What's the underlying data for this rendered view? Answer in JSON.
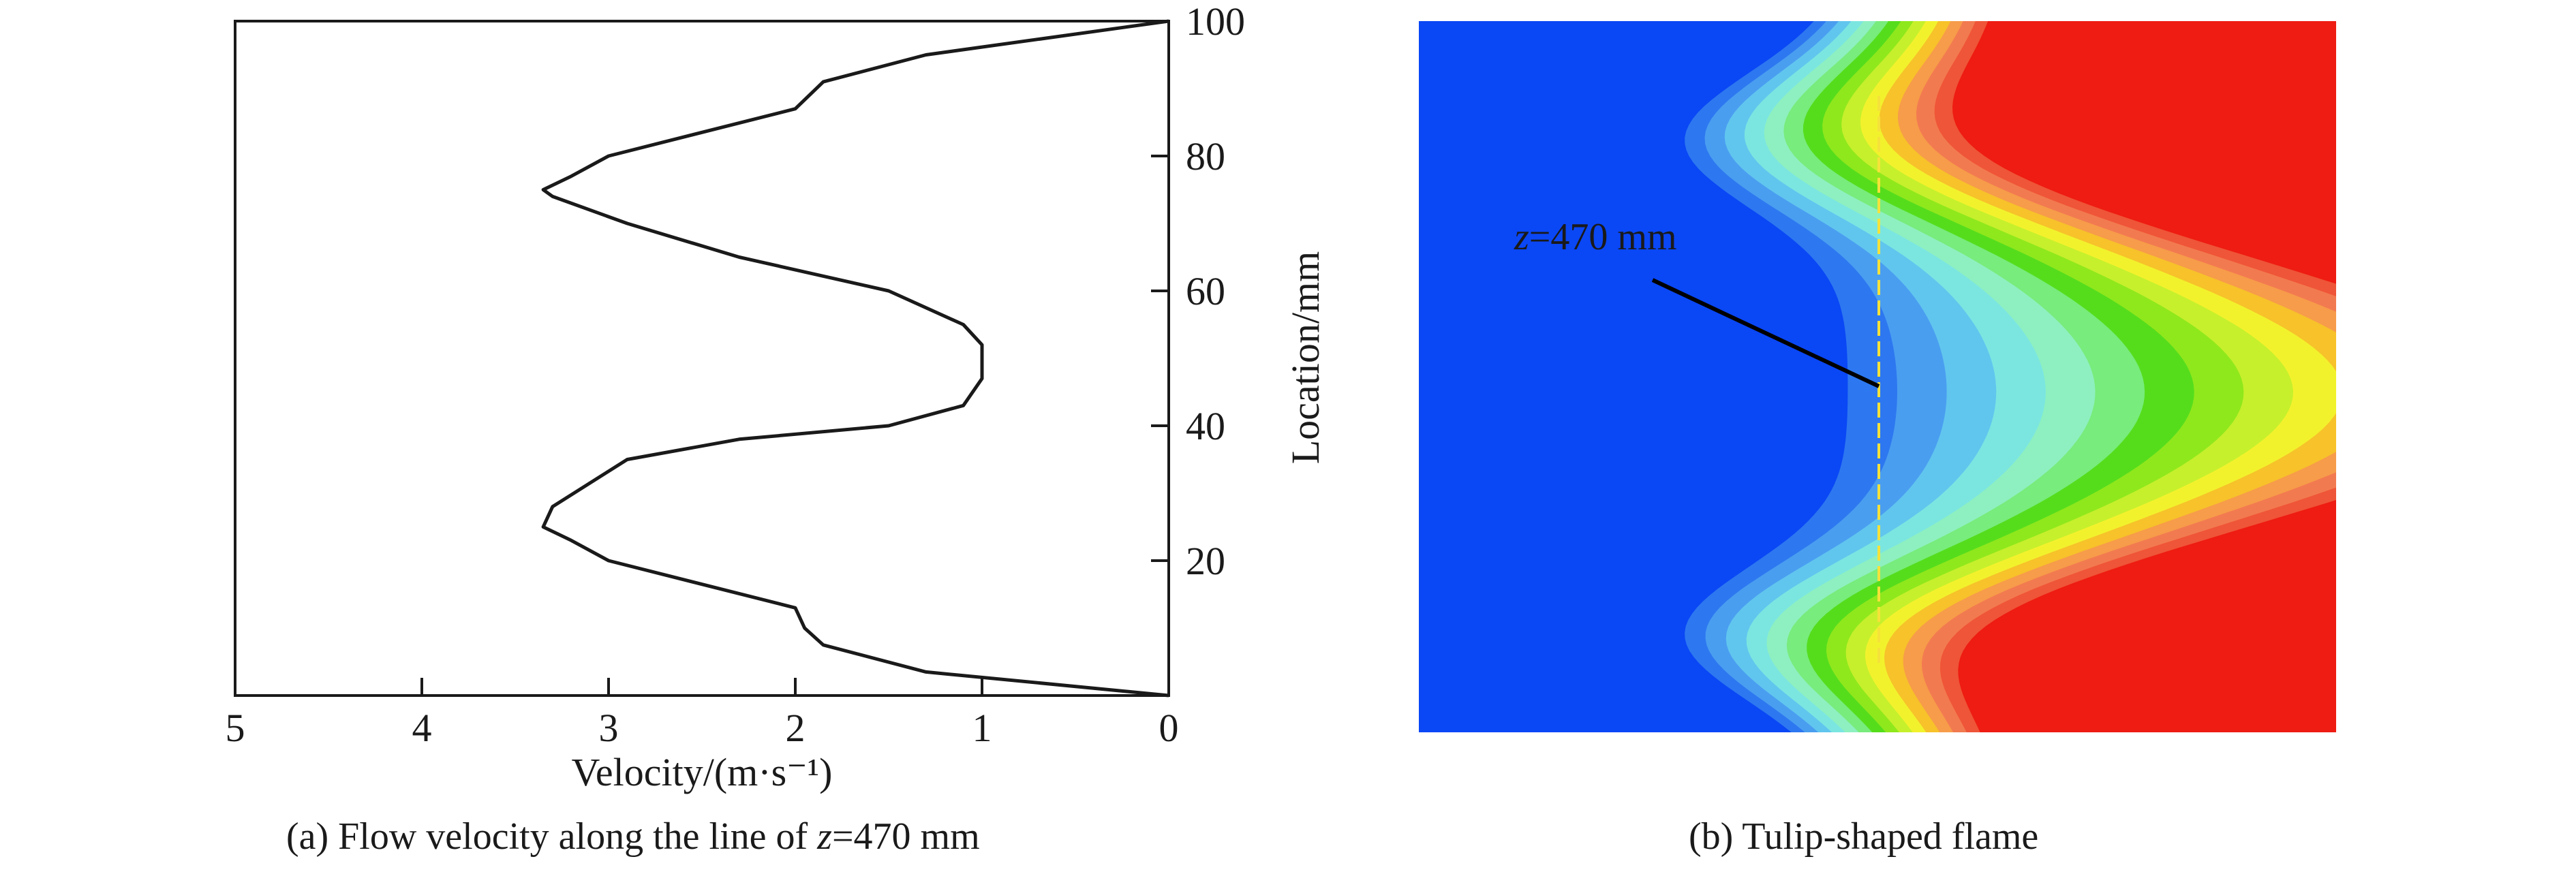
{
  "chart_data": {
    "type": "line",
    "xlabel": "Velocity/(m·s⁻¹)",
    "ylabel": "Location/mm",
    "xlim": [
      5,
      0
    ],
    "ylim": [
      0,
      100
    ],
    "xticks": [
      "5",
      "4",
      "3",
      "2",
      "1",
      "0"
    ],
    "yticks": [
      "20",
      "40",
      "60",
      "80",
      "100"
    ],
    "x_axis_reversed": true,
    "y_axis_position": "right",
    "grid": false,
    "series": [
      {
        "x": [
          0.0,
          1.3,
          1.85,
          1.95,
          2.0,
          3.0,
          3.2,
          3.35,
          3.3,
          2.9,
          2.3,
          1.5,
          1.1,
          1.0,
          1.0,
          1.1,
          1.5,
          2.3,
          2.9,
          3.3,
          3.35,
          3.2,
          3.0,
          2.0,
          1.85,
          1.3,
          0.0
        ],
        "y": [
          0,
          3.5,
          7.5,
          10,
          13,
          20,
          23,
          25,
          28,
          35,
          38,
          40,
          43,
          47,
          52,
          55,
          60,
          65,
          70,
          74,
          75,
          77,
          80,
          87,
          91,
          95,
          100
        ]
      }
    ]
  },
  "annotation": {
    "label_var": "z",
    "label_rest": "=470 mm"
  },
  "captions": {
    "a_prefix": "(a) Flow velocity along the line of ",
    "a_var": "z",
    "a_suffix": "=470 mm",
    "b": "(b) Tulip-shaped flame"
  },
  "colors": {
    "unburnt": "#0a47f5",
    "burnt": "#ee1c12",
    "flame_bands": [
      "#2d78f0",
      "#4a9ef0",
      "#61c6ee",
      "#7be6e0",
      "#8ef0c0",
      "#78ec7c",
      "#55dd1c",
      "#8fe81c",
      "#c6f02c",
      "#f2f22c",
      "#f7c22a",
      "#f79c4a",
      "#f27a50",
      "#ef5538"
    ]
  }
}
